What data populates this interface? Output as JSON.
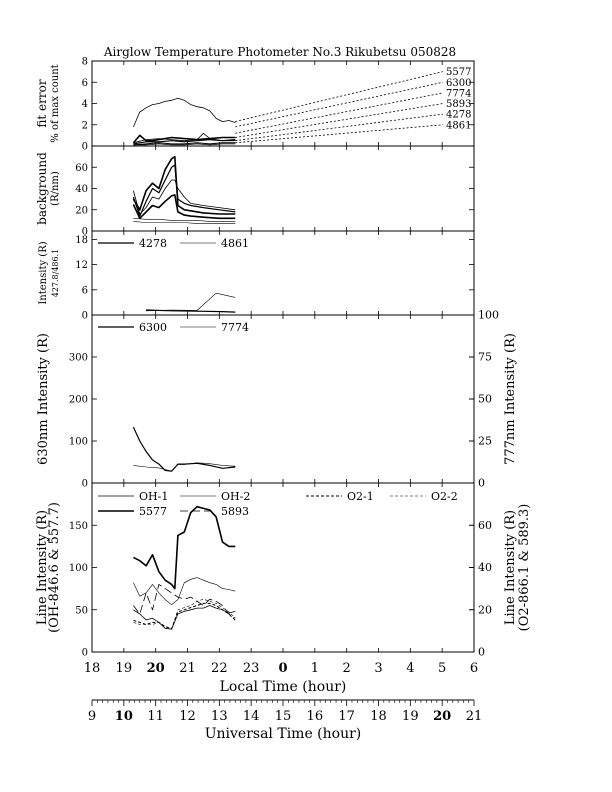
{
  "chart_data": {
    "type": "line",
    "title": "Airglow Temperature Photometer No.3  Rikubetsu  050828",
    "x_axes": {
      "local": {
        "label": "Local Time (hour)",
        "ticks": [
          "18",
          "19",
          "20",
          "21",
          "22",
          "23",
          "0",
          "1",
          "2",
          "3",
          "4",
          "5",
          "6"
        ],
        "bold": [
          "20",
          "0"
        ]
      },
      "universal": {
        "label": "Universal Time (hour)",
        "ticks": [
          "9",
          "10",
          "11",
          "12",
          "13",
          "14",
          "15",
          "16",
          "17",
          "18",
          "19",
          "20",
          "21"
        ],
        "bold": [
          "10",
          "20"
        ]
      },
      "xlim": [
        18,
        30
      ]
    },
    "panels": [
      {
        "id": "fit-error",
        "ylabel": [
          "fit error",
          "% of max count"
        ],
        "ylim": [
          0,
          8
        ],
        "yticks": [
          "0",
          "2",
          "4",
          "6",
          "8"
        ],
        "series": [
          {
            "name": "5577",
            "width": 0.8,
            "x": [
              19.3,
              19.5,
              19.7,
              19.9,
              20.1,
              20.3,
              20.5,
              20.7,
              20.9,
              21.1,
              21.3,
              21.5,
              21.7,
              21.9,
              22.1,
              22.3,
              22.5
            ],
            "y": [
              1.8,
              3.2,
              3.6,
              3.9,
              4.0,
              4.2,
              4.3,
              4.5,
              4.3,
              3.9,
              3.7,
              3.6,
              3.3,
              2.6,
              2.3,
              2.4,
              2.2
            ]
          },
          {
            "name": "5893",
            "width": 1.6,
            "x": [
              19.3,
              19.5,
              19.7,
              19.9,
              20.1,
              20.5,
              20.9,
              21.3,
              21.7,
              22.1,
              22.5
            ],
            "y": [
              0.3,
              1.0,
              0.5,
              0.5,
              0.6,
              0.8,
              0.7,
              0.6,
              0.7,
              0.8,
              0.8
            ]
          },
          {
            "name": "6300",
            "width": 1.2,
            "x": [
              19.3,
              19.7,
              20.1,
              20.5,
              20.9,
              21.3,
              21.7,
              22.1,
              22.5
            ],
            "y": [
              0.2,
              0.4,
              0.4,
              0.5,
              0.4,
              0.5,
              0.6,
              0.5,
              0.6
            ]
          },
          {
            "name": "7774",
            "width": 0.8,
            "x": [
              19.3,
              19.7,
              20.1,
              20.5,
              20.9,
              21.3,
              21.5,
              21.7,
              22.1,
              22.5
            ],
            "y": [
              0.3,
              0.6,
              0.7,
              0.6,
              0.5,
              0.6,
              1.2,
              0.7,
              0.5,
              0.5
            ]
          },
          {
            "name": "4278",
            "width": 1.0,
            "x": [
              19.3,
              19.7,
              20.1,
              20.5,
              20.9,
              21.3,
              21.7,
              22.1,
              22.5
            ],
            "y": [
              0.1,
              0.2,
              0.3,
              0.2,
              0.2,
              0.3,
              0.2,
              0.3,
              0.3
            ]
          },
          {
            "name": "4861",
            "width": 0.8,
            "x": [
              19.3,
              19.7,
              20.1,
              20.5,
              20.9,
              21.3,
              21.7,
              22.1,
              22.5
            ],
            "y": [
              0.1,
              0.1,
              0.2,
              0.1,
              0.1,
              0.2,
              0.1,
              0.2,
              0.2
            ]
          }
        ],
        "line_labels": [
          {
            "text": "5577",
            "y": 7.0,
            "from_y": 2.3
          },
          {
            "text": "6300",
            "y": 6.0,
            "from_y": 1.8
          },
          {
            "text": "7774",
            "y": 5.0,
            "from_y": 1.2
          },
          {
            "text": "5893",
            "y": 4.0,
            "from_y": 0.8
          },
          {
            "text": "4278",
            "y": 3.0,
            "from_y": 0.5
          },
          {
            "text": "4861",
            "y": 2.0,
            "from_y": 0.3
          }
        ]
      },
      {
        "id": "background",
        "ylabel": [
          "background",
          "(R/nm)"
        ],
        "ylim": [
          0,
          80
        ],
        "yticks": [
          "0",
          "20",
          "40",
          "60"
        ],
        "series": [
          {
            "name": "bg-1",
            "width": 1.6,
            "x": [
              19.3,
              19.5,
              19.7,
              19.9,
              20.1,
              20.3,
              20.5,
              20.6,
              20.7,
              20.9,
              21.1,
              21.5,
              22.0,
              22.5
            ],
            "y": [
              30,
              20,
              38,
              45,
              40,
              58,
              68,
              70,
              24,
              20,
              19,
              17,
              16,
              16
            ]
          },
          {
            "name": "bg-2",
            "width": 1.2,
            "x": [
              19.3,
              19.5,
              19.7,
              19.9,
              20.1,
              20.3,
              20.5,
              20.6,
              20.7,
              20.9,
              21.1,
              21.5,
              22.0,
              22.5
            ],
            "y": [
              32,
              14,
              28,
              40,
              36,
              48,
              60,
              62,
              30,
              26,
              24,
              22,
              20,
              18
            ]
          },
          {
            "name": "bg-3",
            "width": 0.8,
            "x": [
              19.3,
              19.5,
              19.7,
              19.9,
              20.1,
              20.3,
              20.5,
              20.6,
              20.7,
              20.9,
              21.1,
              21.5,
              22.0,
              22.5
            ],
            "y": [
              38,
              16,
              22,
              32,
              30,
              40,
              48,
              48,
              40,
              32,
              26,
              24,
              22,
              20
            ]
          },
          {
            "name": "bg-4",
            "width": 1.6,
            "x": [
              19.3,
              19.5,
              19.7,
              19.9,
              20.1,
              20.3,
              20.5,
              20.6,
              20.7,
              20.9,
              21.1,
              21.5,
              22.0,
              22.5
            ],
            "y": [
              25,
              12,
              18,
              24,
              22,
              28,
              33,
              34,
              18,
              15,
              14,
              13,
              12,
              12
            ]
          },
          {
            "name": "bg-5",
            "width": 0.6,
            "x": [
              19.3,
              19.7,
              20.1,
              20.5,
              20.9,
              21.3,
              21.7,
              22.1,
              22.5
            ],
            "y": [
              12,
              11,
              11,
              10,
              10,
              10,
              9,
              9,
              9
            ]
          },
          {
            "name": "bg-6",
            "width": 0.6,
            "x": [
              19.3,
              19.7,
              20.1,
              20.5,
              20.9,
              21.3,
              21.7,
              22.1,
              22.5
            ],
            "y": [
              9,
              8,
              8,
              8,
              8,
              7,
              7,
              7,
              7
            ]
          }
        ]
      },
      {
        "id": "blue-intensity",
        "ylabel": [
          "Intensity (R)",
          "427.8/486.1"
        ],
        "ylim": [
          0,
          20
        ],
        "yticks": [
          "0",
          "6",
          "12",
          "18"
        ],
        "legend": [
          {
            "name": "4278",
            "width": 1.2
          },
          {
            "name": "4861",
            "width": 0.6
          }
        ],
        "series": [
          {
            "name": "4278",
            "width": 1.2,
            "x": [
              19.7,
              20.5,
              21.3,
              22.1,
              22.5
            ],
            "y": [
              1.2,
              1.0,
              0.9,
              0.8,
              0.7
            ]
          },
          {
            "name": "4861",
            "width": 0.6,
            "x": [
              19.7,
              20.5,
              21.3,
              21.9,
              22.5
            ],
            "y": [
              1.0,
              1.2,
              1.1,
              5.2,
              4.2
            ]
          }
        ]
      },
      {
        "id": "oi-intensity",
        "ylabel": [
          "630nm Intensity (R)"
        ],
        "ylabel_right": [
          "777nm Intensity (R)"
        ],
        "ylim": [
          0,
          400
        ],
        "ylim_right": [
          0,
          100
        ],
        "yticks": [
          "0",
          "100",
          "200",
          "300"
        ],
        "yticks_right": [
          "0",
          "25",
          "50",
          "75",
          "100"
        ],
        "legend": [
          {
            "name": "6300",
            "width": 1.2
          },
          {
            "name": "7774",
            "width": 0.6
          }
        ],
        "series": [
          {
            "name": "6300",
            "width": 1.2,
            "axis": "left",
            "x": [
              19.3,
              19.5,
              19.7,
              19.9,
              20.1,
              20.3,
              20.5,
              20.7,
              20.9,
              21.3,
              21.7,
              22.1,
              22.5
            ],
            "y": [
              133,
              100,
              75,
              55,
              45,
              30,
              28,
              45,
              45,
              47,
              42,
              35,
              38
            ]
          },
          {
            "name": "7774",
            "width": 0.6,
            "axis": "right",
            "x": [
              19.3,
              19.7,
              20.1,
              20.5,
              20.7,
              20.9,
              21.3,
              21.7,
              22.1,
              22.5
            ],
            "y": [
              10.5,
              9.5,
              9,
              7,
              11,
              11,
              12,
              11.5,
              10.5,
              10
            ]
          }
        ]
      },
      {
        "id": "line-intensity",
        "ylabel": [
          "Line Intensity (R)",
          "(OH-846.6 & 557.7)"
        ],
        "ylabel_right": [
          "Line Intensity (R)",
          "(O2-866.1 & 589.3)"
        ],
        "ylim": [
          0,
          200
        ],
        "ylim_right": [
          0,
          80
        ],
        "yticks": [
          "0",
          "50",
          "100",
          "150"
        ],
        "yticks_right": [
          "0",
          "20",
          "40",
          "60"
        ],
        "legend": [
          {
            "name": "OH-1",
            "width": 0.8,
            "dash": ""
          },
          {
            "name": "OH-2",
            "width": 0.6,
            "dash": ""
          },
          {
            "name": "O2-1",
            "width": 1.0,
            "dash": "3,2"
          },
          {
            "name": "O2-2",
            "width": 0.6,
            "dash": "3,2"
          },
          {
            "name": "5577",
            "width": 1.6,
            "dash": ""
          },
          {
            "name": "5893",
            "width": 0.8,
            "dash": "8,4"
          }
        ],
        "series": [
          {
            "name": "5577",
            "width": 1.6,
            "dash": "",
            "axis": "left",
            "x": [
              19.3,
              19.5,
              19.7,
              19.9,
              20.1,
              20.3,
              20.5,
              20.6,
              20.7,
              20.9,
              21.1,
              21.3,
              21.5,
              21.7,
              21.9,
              22.1,
              22.3,
              22.5
            ],
            "y": [
              112,
              108,
              102,
              115,
              95,
              85,
              80,
              75,
              138,
              142,
              165,
              172,
              170,
              168,
              160,
              130,
              125,
              125
            ]
          },
          {
            "name": "OH-1",
            "width": 0.8,
            "dash": "",
            "axis": "left",
            "x": [
              19.3,
              19.5,
              19.7,
              19.9,
              20.1,
              20.3,
              20.5,
              20.7,
              20.9,
              21.1,
              21.3,
              21.5,
              21.7,
              21.9,
              22.1,
              22.3,
              22.5
            ],
            "y": [
              50,
              45,
              38,
              40,
              35,
              28,
              27,
              45,
              48,
              50,
              52,
              52,
              55,
              52,
              50,
              46,
              48
            ]
          },
          {
            "name": "OH-2",
            "width": 0.6,
            "dash": "",
            "axis": "left",
            "x": [
              19.3,
              19.5,
              19.7,
              19.9,
              20.1,
              20.3,
              20.5,
              20.7,
              20.9,
              21.1,
              21.3,
              21.5,
              21.7,
              21.9,
              22.1,
              22.3,
              22.5
            ],
            "y": [
              82,
              66,
              70,
              80,
              70,
              62,
              56,
              62,
              82,
              86,
              88,
              85,
              82,
              80,
              75,
              74,
              72
            ]
          },
          {
            "name": "O2-1",
            "width": 1.0,
            "dash": "3,2",
            "axis": "right",
            "x": [
              19.3,
              19.5,
              19.7,
              19.9,
              20.1,
              20.3,
              20.5,
              20.7,
              20.9,
              21.1,
              21.3,
              21.5,
              21.7,
              21.9,
              22.1,
              22.3,
              22.5
            ],
            "y": [
              15,
              14,
              13,
              14,
              14,
              12,
              11,
              19,
              20,
              21,
              22,
              23,
              23,
              22,
              20,
              18,
              15
            ]
          },
          {
            "name": "O2-2",
            "width": 0.6,
            "dash": "3,2",
            "axis": "right",
            "x": [
              19.3,
              19.5,
              19.7,
              19.9,
              20.1,
              20.3,
              20.5,
              20.7,
              20.9,
              21.1,
              21.3,
              21.5,
              21.7,
              21.9,
              22.1,
              22.3,
              22.5
            ],
            "y": [
              14,
              13,
              13,
              13,
              14,
              12,
              11,
              20,
              21,
              22,
              24,
              25,
              24,
              23,
              21,
              19,
              16
            ]
          },
          {
            "name": "5893",
            "width": 0.8,
            "dash": "8,4",
            "axis": "right",
            "x": [
              19.3,
              19.5,
              19.7,
              19.9,
              20.1,
              20.3,
              20.5,
              20.7,
              20.9,
              21.1,
              21.3,
              21.5,
              21.7,
              21.9,
              22.1,
              22.3,
              22.5
            ],
            "y": [
              22,
              18,
              28,
              20,
              32,
              30,
              28,
              26,
              25,
              26,
              24,
              22,
              25,
              24,
              22,
              18,
              16
            ]
          }
        ]
      }
    ]
  }
}
